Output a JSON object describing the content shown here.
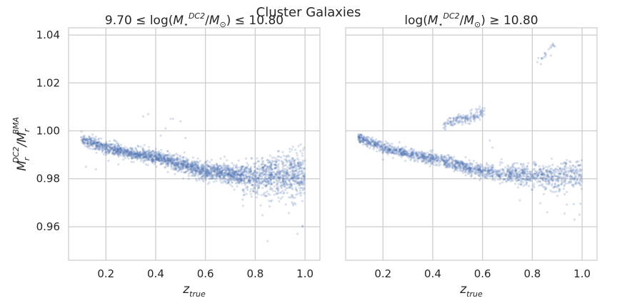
{
  "figure": {
    "suptitle": "Cluster Galaxies"
  },
  "colors": {
    "points": "#4c72b0",
    "grid": "#cccccc",
    "text": "#262626"
  },
  "chart_data": [
    {
      "type": "scatter",
      "title": "9.70 ≤ log(M⋆^DC2/M⊙) ≤ 10.80",
      "xlabel": "z_true",
      "ylabel": "M_r^DC2/M_r^BMA",
      "xlim": [
        0.05,
        1.06
      ],
      "ylim": [
        0.946,
        1.043
      ],
      "xticks": [
        0.2,
        0.4,
        0.6,
        0.8,
        1.0
      ],
      "xtick_labels": [
        "0.2",
        "0.4",
        "0.6",
        "0.8",
        "1.0"
      ],
      "yticks": [
        0.96,
        0.98,
        1.0,
        1.02,
        1.04
      ],
      "ytick_labels": [
        "0.96",
        "0.98",
        "1.00",
        "1.02",
        "1.04"
      ],
      "grid": true,
      "trend": {
        "x": [
          0.1,
          0.2,
          0.3,
          0.4,
          0.5,
          0.6,
          0.7,
          0.8,
          0.9,
          1.0
        ],
        "y": [
          0.9965,
          0.993,
          0.9905,
          0.989,
          0.986,
          0.983,
          0.982,
          0.9815,
          0.9815,
          0.9815
        ]
      },
      "scatter_width": {
        "x": [
          0.1,
          0.3,
          0.5,
          0.7,
          0.8,
          0.9,
          1.0
        ],
        "sd": [
          0.0012,
          0.0013,
          0.0016,
          0.002,
          0.0032,
          0.0042,
          0.0048
        ]
      },
      "outliers": [
        [
          0.12,
          0.985
        ],
        [
          0.16,
          0.984
        ],
        [
          0.2,
          0.99
        ],
        [
          0.21,
          0.9875
        ],
        [
          0.25,
          0.986
        ],
        [
          0.27,
          0.988
        ],
        [
          0.35,
          1.006
        ],
        [
          0.37,
          1.007
        ],
        [
          0.42,
          0.998
        ],
        [
          0.44,
          1.001
        ],
        [
          0.46,
          1.005
        ],
        [
          0.47,
          1.005
        ],
        [
          0.5,
          1.004
        ],
        [
          0.52,
          0.997
        ],
        [
          0.33,
          0.9935
        ],
        [
          0.85,
          0.954
        ],
        [
          0.97,
          0.957
        ],
        [
          0.99,
          0.96
        ]
      ]
    },
    {
      "type": "scatter",
      "title": "log(M⋆^DC2/M⊙) ≥ 10.80",
      "xlabel": "z_true",
      "ylabel": "",
      "xlim": [
        0.05,
        1.06
      ],
      "ylim": [
        0.946,
        1.043
      ],
      "xticks": [
        0.2,
        0.4,
        0.6,
        0.8,
        1.0
      ],
      "xtick_labels": [
        "0.2",
        "0.4",
        "0.6",
        "0.8",
        "1.0"
      ],
      "yticks": [
        0.96,
        0.98,
        1.0,
        1.02,
        1.04
      ],
      "grid": true,
      "trend": {
        "x": [
          0.1,
          0.2,
          0.3,
          0.4,
          0.5,
          0.6,
          0.7,
          0.8,
          0.9,
          1.0
        ],
        "y": [
          0.997,
          0.993,
          0.9905,
          0.9885,
          0.9855,
          0.983,
          0.982,
          0.9815,
          0.9815,
          0.982
        ]
      },
      "scatter_width": {
        "x": [
          0.1,
          0.3,
          0.5,
          0.7,
          0.8,
          0.9,
          1.0
        ],
        "sd": [
          0.001,
          0.0011,
          0.0013,
          0.0016,
          0.0022,
          0.0028,
          0.003
        ]
      },
      "clumps": [
        {
          "x_range": [
            0.44,
            0.61
          ],
          "y_start": 1.0025,
          "y_end": 1.008,
          "sd": 0.0012
        },
        {
          "x_range": [
            0.82,
            0.9
          ],
          "y_start": 1.028,
          "y_end": 1.037,
          "sd": 0.001
        }
      ],
      "outliers": [
        [
          0.2,
          0.988
        ],
        [
          0.29,
          0.9875
        ],
        [
          0.63,
          0.996
        ],
        [
          0.64,
          0.993
        ],
        [
          0.75,
          0.971
        ],
        [
          0.86,
          0.966
        ],
        [
          0.93,
          0.9655
        ],
        [
          0.97,
          0.963
        ],
        [
          0.99,
          0.965
        ]
      ]
    }
  ]
}
